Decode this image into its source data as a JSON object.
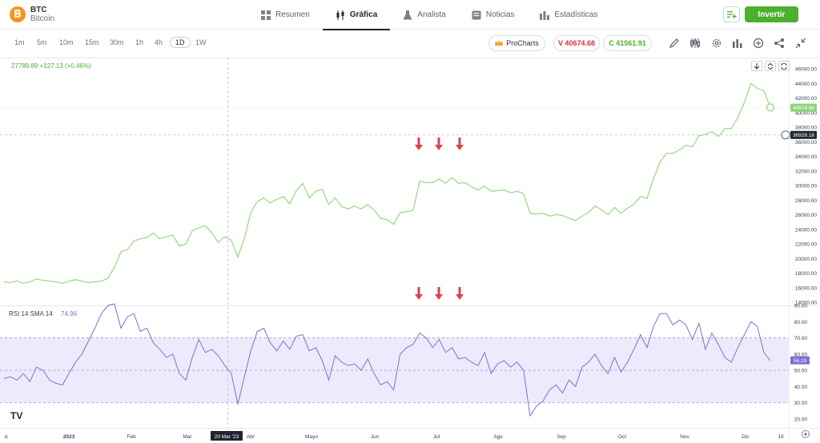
{
  "asset": {
    "symbol": "BTC",
    "name": "Bitcoin",
    "logo_letter": "B",
    "logo_color": "#f7931a"
  },
  "nav": {
    "tabs": [
      {
        "label": "Resumen",
        "icon": "dashboard-icon"
      },
      {
        "label": "Gráfica",
        "icon": "candles-icon",
        "active": true
      },
      {
        "label": "Analista",
        "icon": "flask-icon"
      },
      {
        "label": "Noticias",
        "icon": "news-icon"
      },
      {
        "label": "Estadísticas",
        "icon": "bar-stats-icon"
      }
    ],
    "invest_label": "Invertir",
    "invest_color": "#4caf2d"
  },
  "toolbar": {
    "timeframes": [
      "1m",
      "5m",
      "10m",
      "15m",
      "30m",
      "1h",
      "4h",
      "1D",
      "1W"
    ],
    "active_timeframe": "1D",
    "prochart_label": "ProCharts",
    "sell_label": "V 40674.68",
    "buy_label": "C 41561.91",
    "sell_color": "#d6303c",
    "buy_color": "#4caf2d",
    "tools": [
      "pencil-icon",
      "indicators-icon",
      "settings-icon",
      "bars-icon",
      "add-circle-icon",
      "share-icon",
      "collapse-icon"
    ]
  },
  "price_pane": {
    "legend": "27789.89  +127.13 (+0.46%)",
    "legend_color": "#4caf2d",
    "line_color": "#8fd47a",
    "last_price_label": "40674.68",
    "crosshair_price_label": "36928.18",
    "y_ticks": [
      "46000.00",
      "44000.00",
      "42000.00",
      "40000.00",
      "38000.00",
      "36000.00",
      "34000.00",
      "32000.00",
      "30000.00",
      "28000.00",
      "26000.00",
      "24000.00",
      "22000.00",
      "20000.00",
      "18000.00",
      "16000.00",
      "14000.00"
    ]
  },
  "rsi_pane": {
    "legend_label": "RSI 14 SMA 14",
    "legend_value": "74.96",
    "line_color": "#7b6fd6",
    "band_color": "#efeafb",
    "last_value_label": "56.19",
    "y_ticks": [
      "90.00",
      "80.00",
      "70.00",
      "60.00",
      "50.00",
      "40.00",
      "30.00",
      "20.00"
    ]
  },
  "x_axis": {
    "ticks": [
      "ic",
      "2023",
      "Feb",
      "Mar",
      "Abr",
      "Mayo",
      "Jun",
      "Jul",
      "Ago",
      "Sep",
      "Oct",
      "Nov",
      "Dic",
      "19"
    ],
    "crosshair_label": "20 Mar '23"
  },
  "watermark": "TV",
  "chart_data": {
    "type": "line",
    "series": [
      {
        "values": [
          16800,
          16700,
          16900,
          16600,
          16800,
          17200,
          17000,
          16900,
          16800,
          16600,
          16900,
          17100,
          16900,
          16700,
          16800,
          16900,
          17300,
          18800,
          20900,
          21200,
          22400,
          22700,
          22900,
          23500,
          22700,
          23000,
          23200,
          21700,
          22000,
          23800,
          24200,
          24500,
          23500,
          22200,
          23000,
          22500,
          20200,
          22700,
          26300,
          27800,
          28300,
          27600,
          28100,
          28500,
          27500,
          29300,
          30300,
          28300,
          29200,
          29500,
          27400,
          28300,
          27100,
          26800,
          27200,
          26800,
          27400,
          26600,
          25500,
          25300,
          24700,
          26300,
          26400,
          26600,
          30600,
          30400,
          30400,
          30900,
          30300,
          31100,
          30300,
          30400,
          29800,
          29400,
          29900,
          29200,
          29300,
          29400,
          29000,
          29200,
          28900,
          26200,
          26100,
          26200,
          25800,
          26000,
          25900,
          25500,
          25200,
          25800,
          26300,
          27200,
          26700,
          26000,
          27000,
          26200,
          26900,
          27400,
          28500,
          28200,
          30900,
          33200,
          34400,
          34400,
          34900,
          35500,
          35300,
          36800,
          37000,
          37400,
          36700,
          37800,
          37800,
          39300,
          41400,
          44000,
          43300,
          43000,
          40700
        ]
      },
      {
        "name": "RSI 14",
        "values": [
          45,
          46,
          44,
          48,
          43,
          52,
          50,
          44,
          42,
          41,
          48,
          55,
          60,
          68,
          76,
          85,
          90,
          91,
          76,
          83,
          85,
          74,
          76,
          67,
          63,
          58,
          60,
          48,
          44,
          58,
          69,
          61,
          63,
          59,
          53,
          48,
          29,
          46,
          62,
          74,
          76,
          67,
          62,
          68,
          63,
          71,
          72,
          62,
          64,
          56,
          44,
          59,
          55,
          53,
          54,
          50,
          57,
          48,
          41,
          43,
          38,
          60,
          64,
          66,
          73,
          70,
          64,
          69,
          61,
          64,
          57,
          58,
          55,
          53,
          61,
          48,
          54,
          56,
          52,
          55,
          50,
          22,
          28,
          31,
          38,
          41,
          36,
          44,
          40,
          52,
          55,
          60,
          53,
          48,
          58,
          49,
          55,
          63,
          72,
          64,
          77,
          85,
          85,
          78,
          81,
          78,
          69,
          79,
          63,
          73,
          66,
          58,
          55,
          64,
          72,
          80,
          77,
          61,
          56
        ]
      }
    ],
    "x_ticks": [
      "ic",
      "2023",
      "Feb",
      "Mar",
      "Abr",
      "Mayo",
      "Jun",
      "Jul",
      "Ago",
      "Sep",
      "Oct",
      "Nov",
      "Dic",
      "19"
    ],
    "price_ylim": [
      14000,
      46000
    ],
    "rsi_ylim": [
      20,
      90
    ],
    "rsi_bands": [
      30,
      50,
      70
    ],
    "grid": false,
    "legend": "top-left"
  }
}
